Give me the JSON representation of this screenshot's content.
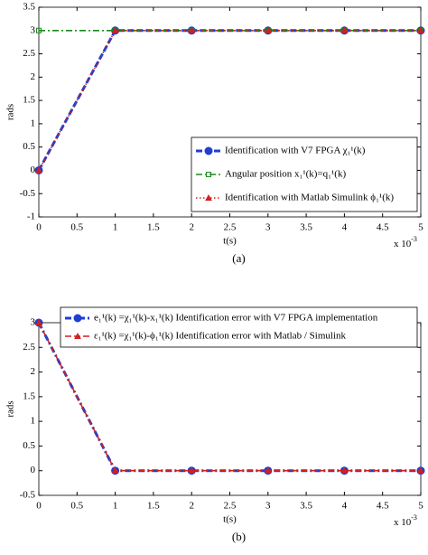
{
  "chart_data": [
    {
      "type": "line",
      "caption": "(a)",
      "xlabel": "t(s)",
      "ylabel": "rads",
      "x_multiplier": "x 10",
      "x_multiplier_exp": "-3",
      "x": [
        0,
        1,
        2,
        3,
        4,
        5
      ],
      "xlim": [
        0,
        5
      ],
      "xticks": [
        0,
        0.5,
        1,
        1.5,
        2,
        2.5,
        3,
        3.5,
        4,
        4.5,
        5
      ],
      "ylim": [
        -1,
        3.5
      ],
      "yticks": [
        -1,
        -0.5,
        0,
        0.5,
        1,
        1.5,
        2,
        2.5,
        3,
        3.5
      ],
      "legend": "lower right",
      "series": [
        {
          "name": "Identification with V7 FPGA χ₁¹(k)",
          "color": "#1f3fd0",
          "linestyle": "dashed",
          "marker": "circle",
          "values": [
            0,
            3,
            3,
            3,
            3,
            3
          ]
        },
        {
          "name": "Angular position x₁¹(k)=q₁¹(k)",
          "color": "#1a8a1a",
          "linestyle": "dashdot",
          "marker": "square",
          "values": [
            3,
            3,
            3,
            3,
            3,
            3
          ]
        },
        {
          "name": "Identification with Matlab Simulink ϕ₁¹(k)",
          "color": "#d02020",
          "linestyle": "dotted",
          "marker": "triangle",
          "values": [
            0,
            3,
            3,
            3,
            3,
            3
          ]
        }
      ]
    },
    {
      "type": "line",
      "caption": "(b)",
      "xlabel": "t(s)",
      "ylabel": "rads",
      "x_multiplier": "x 10",
      "x_multiplier_exp": "-3",
      "x": [
        0,
        1,
        2,
        3,
        4,
        5
      ],
      "xlim": [
        0,
        5
      ],
      "xticks": [
        0,
        0.5,
        1,
        1.5,
        2,
        2.5,
        3,
        3.5,
        4,
        4.5,
        5
      ],
      "ylim": [
        -0.5,
        3
      ],
      "yticks": [
        -0.5,
        0,
        0.5,
        1,
        1.5,
        2,
        2.5,
        3
      ],
      "legend": "upper right",
      "series": [
        {
          "name": "e₁¹(k) =χ₁¹(k)-x₁¹(k) Identification error with V7 FPGA implementation",
          "color": "#1f3fd0",
          "linestyle": "dashdot",
          "marker": "circle",
          "values": [
            3,
            0,
            0,
            0,
            0,
            0
          ]
        },
        {
          "name": "ε₁¹(k) =χ₁¹(k)-ϕ₁¹(k) Identification error with Matlab / Simulink",
          "color": "#d02020",
          "linestyle": "dashed",
          "marker": "triangle",
          "values": [
            3,
            0,
            0,
            0,
            0,
            0
          ]
        }
      ]
    }
  ]
}
